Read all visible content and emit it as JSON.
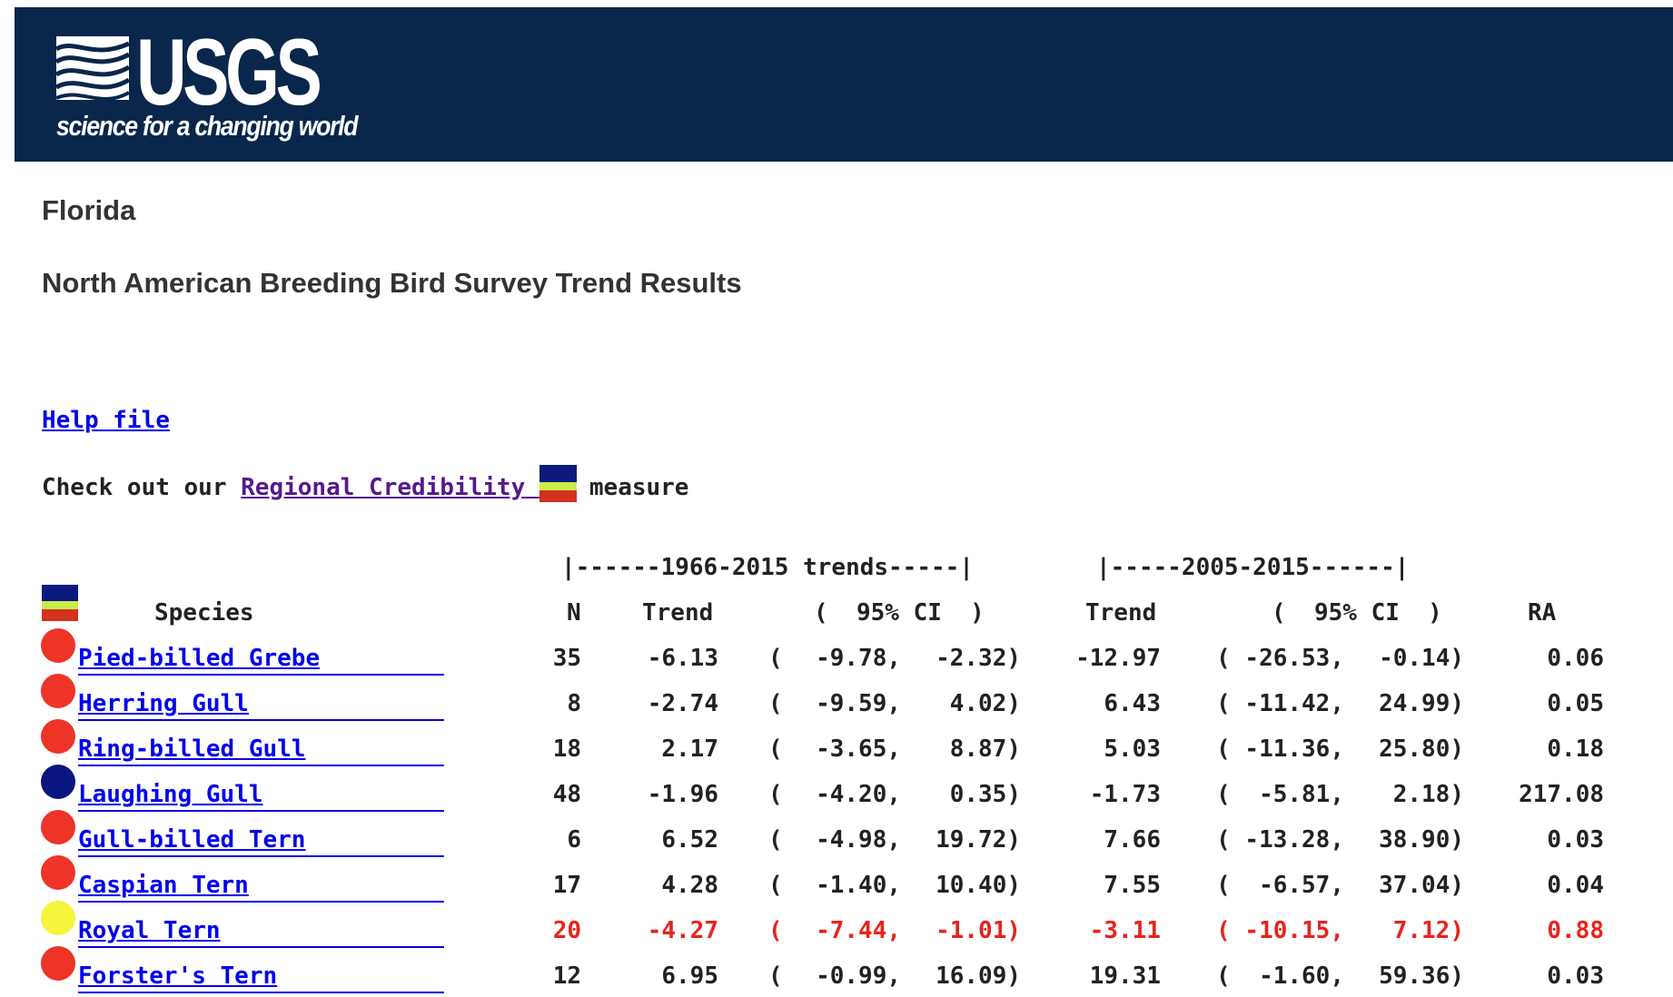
{
  "header": {
    "logo_text": "USGS",
    "tagline": "science for a changing world",
    "background_color": "#0a264a"
  },
  "page": {
    "region": "Florida",
    "title": "North American Breeding Bird Survey Trend Results"
  },
  "links": {
    "help": "Help file",
    "check_prefix": "Check out our",
    "regional_credibility": "Regional Credibility ",
    "check_suffix": "measure"
  },
  "table": {
    "period1_label": "|------1966-2015 trends-----|",
    "period2_label": "|-----2005-2015------|",
    "headers": {
      "species": "Species",
      "n": "N",
      "trend1": "Trend",
      "ci1": "(  95% CI  )",
      "trend2": "Trend",
      "ci2": "(  95% CI  )",
      "ra": "RA"
    },
    "rows": [
      {
        "species": "Pied-billed Grebe",
        "credibility": "red",
        "n": "35",
        "trend1": "-6.13",
        "ci1_low": "-9.78,",
        "ci1_high": "-2.32)",
        "trend2": "-12.97",
        "ci2_low": "( -26.53,",
        "ci2_high": "-0.14)",
        "ra": "0.06",
        "alert": false
      },
      {
        "species": "Herring Gull",
        "credibility": "red",
        "n": "8",
        "trend1": "-2.74",
        "ci1_low": "-9.59,",
        "ci1_high": "4.02)",
        "trend2": "6.43",
        "ci2_low": "( -11.42,",
        "ci2_high": "24.99)",
        "ra": "0.05",
        "alert": false
      },
      {
        "species": "Ring-billed Gull",
        "credibility": "red",
        "n": "18",
        "trend1": "2.17",
        "ci1_low": "-3.65,",
        "ci1_high": "8.87)",
        "trend2": "5.03",
        "ci2_low": "( -11.36,",
        "ci2_high": "25.80)",
        "ra": "0.18",
        "alert": false
      },
      {
        "species": "Laughing Gull",
        "credibility": "blue",
        "n": "48",
        "trend1": "-1.96",
        "ci1_low": "-4.20,",
        "ci1_high": "0.35)",
        "trend2": "-1.73",
        "ci2_low": "(  -5.81,",
        "ci2_high": "2.18)",
        "ra": "217.08",
        "alert": false
      },
      {
        "species": "Gull-billed Tern",
        "credibility": "red",
        "n": "6",
        "trend1": "6.52",
        "ci1_low": "-4.98,",
        "ci1_high": "19.72)",
        "trend2": "7.66",
        "ci2_low": "( -13.28,",
        "ci2_high": "38.90)",
        "ra": "0.03",
        "alert": false
      },
      {
        "species": "Caspian Tern",
        "credibility": "red",
        "n": "17",
        "trend1": "4.28",
        "ci1_low": "-1.40,",
        "ci1_high": "10.40)",
        "trend2": "7.55",
        "ci2_low": "(  -6.57,",
        "ci2_high": "37.04)",
        "ra": "0.04",
        "alert": false
      },
      {
        "species": "Royal Tern",
        "credibility": "yellow",
        "n": "20",
        "trend1": "-4.27",
        "ci1_low": "-7.44,",
        "ci1_high": "-1.01)",
        "trend2": "-3.11",
        "ci2_low": "( -10.15,",
        "ci2_high": "7.12)",
        "ra": "0.88",
        "alert": true
      },
      {
        "species": "Forster's Tern",
        "credibility": "red",
        "n": "12",
        "trend1": "6.95",
        "ci1_low": "-0.99,",
        "ci1_high": "16.09)",
        "trend2": "19.31",
        "ci2_low": "(  -1.60,",
        "ci2_high": "59.36)",
        "ra": "0.03",
        "alert": false
      }
    ]
  },
  "colors": {
    "credibility_red": "#ee3327",
    "credibility_blue": "#0a1580",
    "credibility_yellow": "#f5f53c",
    "alert_text": "#e8231b",
    "link": "#0000ee",
    "visited_link": "#551a8b"
  }
}
